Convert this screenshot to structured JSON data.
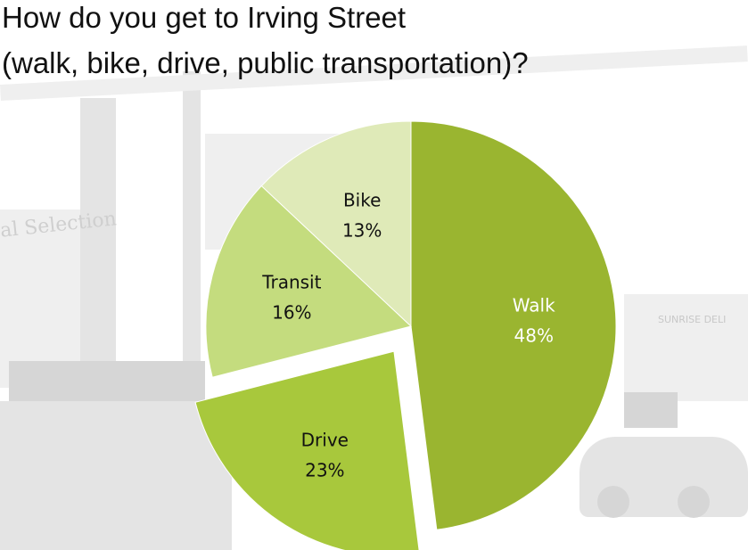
{
  "title_lines": [
    "How do you get to Irving Street",
    "(walk, bike, drive, public transportation)?"
  ],
  "background_sign": "al Selection",
  "background_store_sign": "SUNRISE DELI",
  "chart_data": {
    "type": "pie",
    "title": "How do you get to Irving Street (walk, bike, drive, public transportation)?",
    "slices": [
      {
        "label": "Walk",
        "value": 48,
        "value_label": "48%",
        "color": "#9ab530",
        "text_color": "#ffffff",
        "exploded": false
      },
      {
        "label": "Drive",
        "value": 23,
        "value_label": "23%",
        "color": "#a8c83c",
        "text_color": "#111111",
        "exploded": true
      },
      {
        "label": "Transit",
        "value": 16,
        "value_label": "16%",
        "color": "#c4dc7e",
        "text_color": "#111111",
        "exploded": false
      },
      {
        "label": "Bike",
        "value": 13,
        "value_label": "13%",
        "color": "#dfeab8",
        "text_color": "#111111",
        "exploded": false
      }
    ],
    "start_angle_deg": 0,
    "direction": "clockwise",
    "legend": "none"
  }
}
